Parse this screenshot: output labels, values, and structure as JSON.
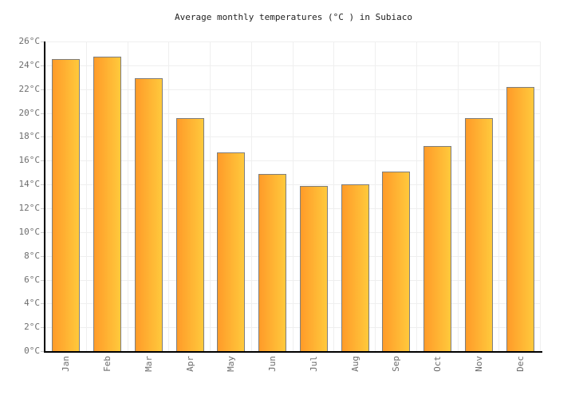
{
  "chart_data": {
    "type": "bar",
    "title": "Average monthly temperatures (°C ) in Subiaco",
    "categories": [
      "Jan",
      "Feb",
      "Mar",
      "Apr",
      "May",
      "Jun",
      "Jul",
      "Aug",
      "Sep",
      "Oct",
      "Nov",
      "Dec"
    ],
    "values": [
      24.5,
      24.7,
      22.9,
      19.6,
      16.7,
      14.9,
      13.9,
      14.0,
      15.1,
      17.2,
      19.6,
      22.2
    ],
    "unit": "°C",
    "xlabel": "",
    "ylabel": "",
    "ylim": [
      0,
      26
    ],
    "y_ticks": [
      {
        "value": 0,
        "label": "0°C"
      },
      {
        "value": 2,
        "label": "2°C"
      },
      {
        "value": 4,
        "label": "4°C"
      },
      {
        "value": 6,
        "label": "6°C"
      },
      {
        "value": 8,
        "label": "8°C"
      },
      {
        "value": 10,
        "label": "10°C"
      },
      {
        "value": 12,
        "label": "12°C"
      },
      {
        "value": 14,
        "label": "14°C"
      },
      {
        "value": 16,
        "label": "16°C"
      },
      {
        "value": 18,
        "label": "18°C"
      },
      {
        "value": 20,
        "label": "20°C"
      },
      {
        "value": 22,
        "label": "22°C"
      },
      {
        "value": 24,
        "label": "24°C"
      },
      {
        "value": 26,
        "label": "26°C"
      }
    ],
    "grid": true,
    "legend": false,
    "colors": {
      "background": "#ffffff",
      "title": "#222222",
      "label": "#6e6e6e",
      "grid": "#efefef",
      "tick": "#cccccc",
      "axis": "#000000",
      "bar_gradient_left": "#ff9b29",
      "bar_gradient_right": "#ffc93c",
      "bar_border": "#7e7e7e"
    }
  }
}
